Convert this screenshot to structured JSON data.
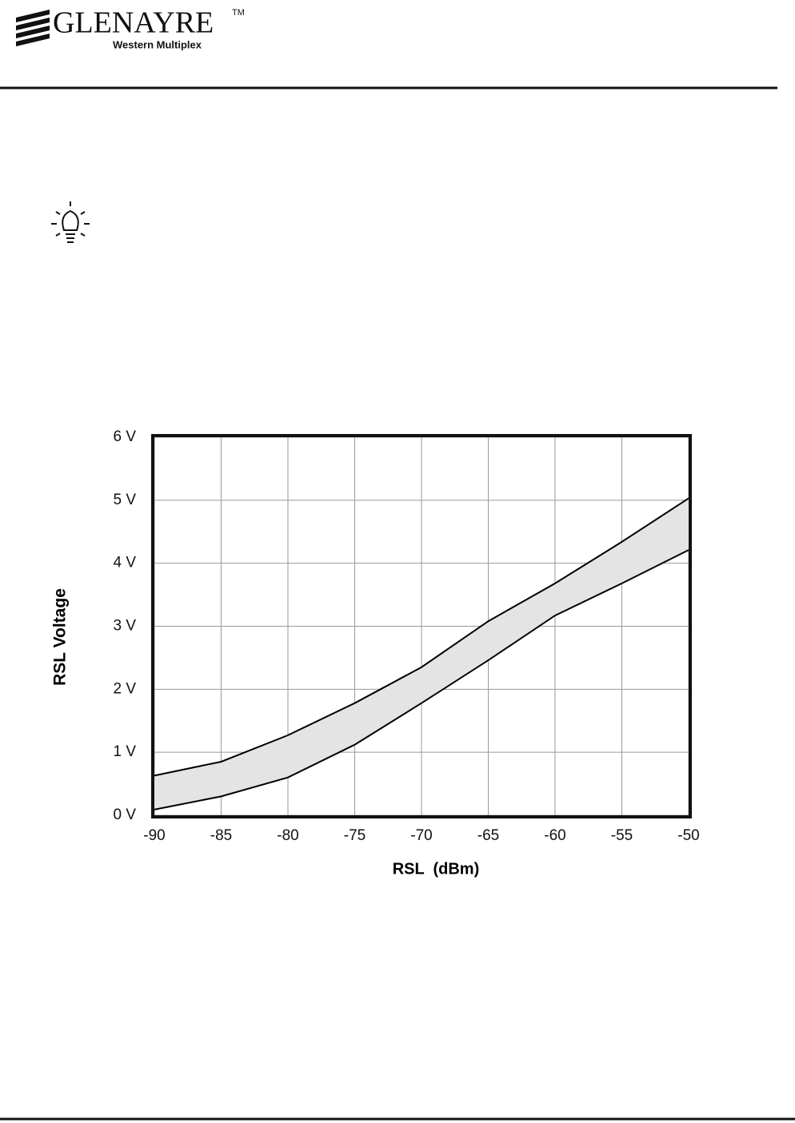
{
  "header": {
    "brand": "GLENAYRE",
    "trademark": "TM",
    "subbrand": "Western Multiplex"
  },
  "chart_data": {
    "type": "band",
    "xlabel": "RSL  (dBm)",
    "ylabel": "RSL Voltage",
    "x": [
      -90,
      -85,
      -80,
      -75,
      -70,
      -65,
      -60,
      -55,
      -50
    ],
    "series": [
      {
        "color": "#000000",
        "values": [
          0.63,
          0.85,
          1.27,
          1.78,
          2.35,
          3.08,
          3.68,
          4.34,
          5.03
        ]
      },
      {
        "color": "#000000",
        "values": [
          0.09,
          0.3,
          0.6,
          1.12,
          1.78,
          2.46,
          3.17,
          3.68,
          4.21
        ]
      }
    ],
    "band_color": "#e4e4e4",
    "xlim": [
      -90,
      -50
    ],
    "xticks": [
      -90,
      -85,
      -80,
      -75,
      -70,
      -65,
      -60,
      -55,
      -50
    ],
    "ylim": [
      0,
      6
    ],
    "yticks": [
      {
        "value": 0,
        "label": "0 V"
      },
      {
        "value": 1,
        "label": "1 V"
      },
      {
        "value": 2,
        "label": "2 V"
      },
      {
        "value": 3,
        "label": "3 V"
      },
      {
        "value": 4,
        "label": "4 V"
      },
      {
        "value": 5,
        "label": "5 V"
      },
      {
        "value": 6,
        "label": "6 V"
      }
    ],
    "grid": true
  }
}
